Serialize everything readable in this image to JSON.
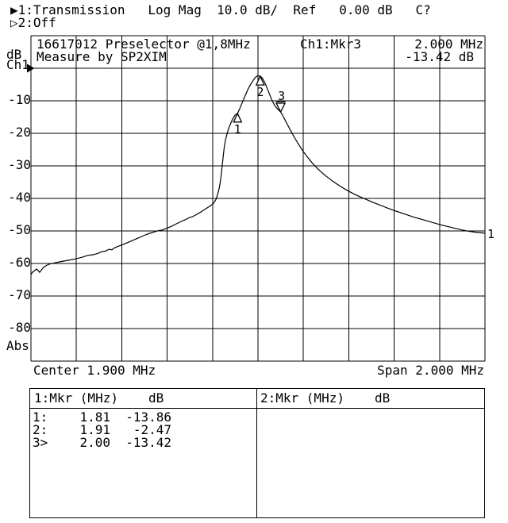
{
  "colors": {
    "foreground": "#000000",
    "background": "#ffffff"
  },
  "header": {
    "ch1_arrow": "▶",
    "line1": "1:Transmission   Log Mag  10.0 dB/  Ref   0.00 dB   C?",
    "ch2_arrow": "▷",
    "line2": "2:Off"
  },
  "graph": {
    "title_line1": "16617012 Preselector @1,8MHz",
    "title_line2": "Measure by SP2XIM",
    "readout": {
      "label": "Ch1:Mkr3",
      "freq": "2.000 MHz",
      "level": "-13.42 dB"
    },
    "y_axis": {
      "unit": "dB",
      "channel": "Ch1",
      "ref_arrow": "▶",
      "ticks": [
        "-10",
        "-20",
        "-30",
        "-40",
        "-50",
        "-60",
        "-70",
        "-80"
      ],
      "bottom": "Abs"
    },
    "x_axis": {
      "center": "Center 1.900 MHz",
      "span": "Span 2.000 MHz"
    }
  },
  "marker_table": {
    "left": {
      "header_label": "1:Mkr (MHz)",
      "header_unit": "dB",
      "rows": [
        {
          "id": "1:",
          "mhz": "1.81",
          "db": "-13.86"
        },
        {
          "id": "2:",
          "mhz": "1.91",
          "db": "-2.47"
        },
        {
          "id": "3>",
          "mhz": "2.00",
          "db": "-13.42"
        }
      ]
    },
    "right": {
      "header_label": "2:Mkr (MHz)",
      "header_unit": "dB",
      "rows": []
    }
  },
  "chart_data": {
    "type": "line",
    "title": "16617012 Preselector @1,8MHz",
    "subtitle": "Measure by SP2XIM",
    "x_axis": {
      "label_center": "Center 1.900 MHz",
      "label_span": "Span 2.000 MHz",
      "start_mhz": 0.9,
      "stop_mhz": 2.9,
      "divisions": 10
    },
    "y_axis": {
      "unit": "dB",
      "ref_db": 0.0,
      "scale_db_per_div": 10.0,
      "top_db": 0,
      "bottom_db": -90,
      "tick_labels": [
        "-10",
        "-20",
        "-30",
        "-40",
        "-50",
        "-60",
        "-70",
        "-80"
      ]
    },
    "grid": true,
    "trace_end_label": "1",
    "markers": [
      {
        "id": "1",
        "mhz": 1.81,
        "db": -13.86,
        "style": "up"
      },
      {
        "id": "2",
        "mhz": 1.91,
        "db": -2.47,
        "style": "up"
      },
      {
        "id": "3",
        "mhz": 2.0,
        "db": -13.42,
        "style": "down_active"
      }
    ],
    "series": [
      {
        "name": "Ch1 Transmission (dB)",
        "points": [
          [
            0.9,
            -63.4
          ],
          [
            0.908,
            -62.6
          ],
          [
            0.916,
            -62.2
          ],
          [
            0.924,
            -61.7
          ],
          [
            0.93,
            -62.0
          ],
          [
            0.938,
            -62.7
          ],
          [
            0.946,
            -62.0
          ],
          [
            0.954,
            -61.3
          ],
          [
            0.968,
            -60.6
          ],
          [
            0.985,
            -60.1
          ],
          [
            1.005,
            -59.8
          ],
          [
            1.035,
            -59.4
          ],
          [
            1.065,
            -59.0
          ],
          [
            1.095,
            -58.6
          ],
          [
            1.125,
            -58.1
          ],
          [
            1.15,
            -57.5
          ],
          [
            1.175,
            -57.3
          ],
          [
            1.195,
            -56.9
          ],
          [
            1.21,
            -56.4
          ],
          [
            1.228,
            -56.2
          ],
          [
            1.245,
            -55.6
          ],
          [
            1.256,
            -55.8
          ],
          [
            1.268,
            -55.2
          ],
          [
            1.288,
            -54.6
          ],
          [
            1.308,
            -54.1
          ],
          [
            1.328,
            -53.5
          ],
          [
            1.348,
            -52.9
          ],
          [
            1.368,
            -52.3
          ],
          [
            1.388,
            -51.7
          ],
          [
            1.408,
            -51.1
          ],
          [
            1.428,
            -50.6
          ],
          [
            1.448,
            -50.2
          ],
          [
            1.462,
            -49.9
          ],
          [
            1.478,
            -49.7
          ],
          [
            1.498,
            -49.2
          ],
          [
            1.518,
            -48.6
          ],
          [
            1.538,
            -47.9
          ],
          [
            1.558,
            -47.2
          ],
          [
            1.578,
            -46.6
          ],
          [
            1.598,
            -45.9
          ],
          [
            1.612,
            -45.6
          ],
          [
            1.628,
            -45.0
          ],
          [
            1.648,
            -44.2
          ],
          [
            1.668,
            -43.3
          ],
          [
            1.688,
            -42.4
          ],
          [
            1.705,
            -41.5
          ],
          [
            1.715,
            -40.3
          ],
          [
            1.723,
            -38.6
          ],
          [
            1.73,
            -36.6
          ],
          [
            1.736,
            -34.0
          ],
          [
            1.741,
            -31.0
          ],
          [
            1.746,
            -27.5
          ],
          [
            1.751,
            -24.5
          ],
          [
            1.757,
            -22.0
          ],
          [
            1.765,
            -19.8
          ],
          [
            1.775,
            -17.7
          ],
          [
            1.787,
            -15.8
          ],
          [
            1.798,
            -14.5
          ],
          [
            1.81,
            -13.86
          ],
          [
            1.821,
            -12.2
          ],
          [
            1.833,
            -10.2
          ],
          [
            1.845,
            -8.2
          ],
          [
            1.857,
            -6.3
          ],
          [
            1.869,
            -4.8
          ],
          [
            1.879,
            -3.7
          ],
          [
            1.887,
            -2.9
          ],
          [
            1.894,
            -2.5
          ],
          [
            1.902,
            -2.35
          ],
          [
            1.91,
            -2.45
          ],
          [
            1.918,
            -2.9
          ],
          [
            1.926,
            -3.8
          ],
          [
            1.934,
            -5.0
          ],
          [
            1.942,
            -6.4
          ],
          [
            1.951,
            -8.0
          ],
          [
            1.961,
            -9.7
          ],
          [
            1.973,
            -11.4
          ],
          [
            1.986,
            -12.5
          ],
          [
            2.0,
            -13.42
          ],
          [
            2.014,
            -15.2
          ],
          [
            2.029,
            -17.2
          ],
          [
            2.044,
            -19.2
          ],
          [
            2.059,
            -21.1
          ],
          [
            2.079,
            -23.4
          ],
          [
            2.099,
            -25.5
          ],
          [
            2.119,
            -27.4
          ],
          [
            2.139,
            -29.1
          ],
          [
            2.159,
            -30.6
          ],
          [
            2.179,
            -31.9
          ],
          [
            2.199,
            -33.1
          ],
          [
            2.229,
            -34.7
          ],
          [
            2.259,
            -36.1
          ],
          [
            2.289,
            -37.4
          ],
          [
            2.319,
            -38.5
          ],
          [
            2.349,
            -39.5
          ],
          [
            2.379,
            -40.4
          ],
          [
            2.409,
            -41.3
          ],
          [
            2.439,
            -42.1
          ],
          [
            2.469,
            -42.9
          ],
          [
            2.499,
            -43.7
          ],
          [
            2.529,
            -44.4
          ],
          [
            2.559,
            -45.1
          ],
          [
            2.589,
            -45.8
          ],
          [
            2.619,
            -46.4
          ],
          [
            2.649,
            -47.0
          ],
          [
            2.679,
            -47.6
          ],
          [
            2.709,
            -48.2
          ],
          [
            2.739,
            -48.7
          ],
          [
            2.769,
            -49.2
          ],
          [
            2.799,
            -49.7
          ],
          [
            2.829,
            -50.1
          ],
          [
            2.859,
            -50.4
          ],
          [
            2.879,
            -50.5
          ],
          [
            2.9,
            -50.7
          ]
        ]
      }
    ]
  }
}
